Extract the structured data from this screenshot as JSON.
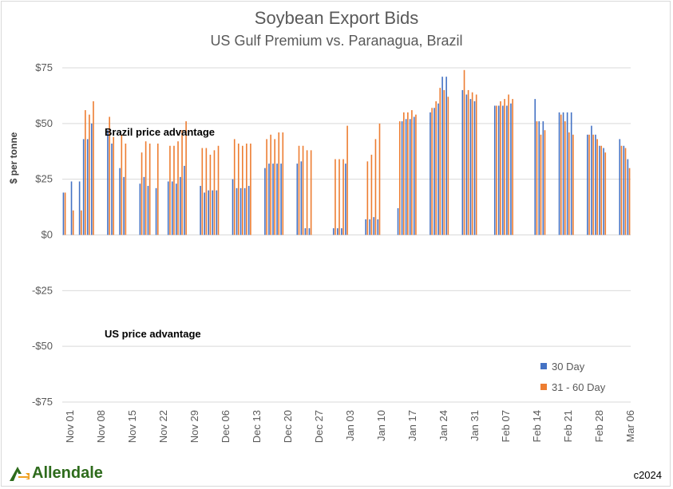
{
  "chart_data": {
    "type": "bar",
    "title": "Soybean Export Bids",
    "subtitle": "US Gulf Premium vs. Paranagua, Brazil",
    "ylabel": "$ per tonne",
    "ylim": [
      -75,
      75
    ],
    "yticks": [
      "$75",
      "$50",
      "$25",
      "$0",
      "-$25",
      "-$50",
      "-$75"
    ],
    "ytick_values": [
      75,
      50,
      25,
      0,
      -25,
      -50,
      -75
    ],
    "xtick_labels": [
      "Nov 01",
      "Nov 08",
      "Nov 15",
      "Nov 22",
      "Nov 29",
      "Dec 06",
      "Dec 13",
      "Dec 20",
      "Dec 27",
      "Jan 03",
      "Jan 10",
      "Jan 17",
      "Jan 24",
      "Jan 31",
      "Feb 07",
      "Feb 14",
      "Feb 21",
      "Feb 28",
      "Mar 06"
    ],
    "annotations": [
      "Brazil price advantage",
      "US price advantage"
    ],
    "legend_position": "bottom-right",
    "grid": "horizontal",
    "colors": {
      "series1": "#4472c4",
      "series2": "#ed7d31"
    },
    "series": [
      {
        "name": "30 Day",
        "values": [
          19,
          null,
          24,
          null,
          24,
          43,
          43,
          50,
          null,
          null,
          null,
          47,
          41,
          null,
          30,
          26,
          null,
          null,
          null,
          23,
          26,
          22,
          null,
          21,
          null,
          null,
          24,
          24,
          23,
          26,
          31,
          null,
          null,
          null,
          22,
          19,
          20,
          20,
          20,
          null,
          null,
          null,
          25,
          21,
          21,
          21,
          22,
          null,
          null,
          null,
          30,
          32,
          32,
          32,
          32,
          null,
          null,
          null,
          32,
          33,
          3,
          3,
          null,
          null,
          null,
          null,
          null,
          3,
          3,
          3,
          32,
          null,
          null,
          null,
          null,
          7,
          7,
          8,
          7,
          null,
          null,
          null,
          null,
          12,
          51,
          52,
          52,
          53,
          null,
          null,
          null,
          55,
          57,
          59,
          71,
          71,
          null,
          null,
          null,
          65,
          63,
          61,
          60,
          null,
          null,
          null,
          null,
          58,
          58,
          58,
          58,
          59,
          null,
          null,
          null,
          null,
          null,
          61,
          51,
          51,
          null,
          null,
          null,
          55,
          55,
          55,
          55,
          null,
          null,
          null,
          45,
          49,
          45,
          40,
          39,
          null,
          null,
          null,
          43,
          40,
          34
        ]
      },
      {
        "name": "31 - 60 Day",
        "values": [
          19,
          null,
          11,
          null,
          11,
          56,
          54,
          60,
          null,
          null,
          null,
          53,
          44,
          null,
          45,
          41,
          null,
          null,
          null,
          37,
          42,
          41,
          null,
          41,
          null,
          null,
          40,
          40,
          42,
          47,
          51,
          null,
          null,
          null,
          39,
          39,
          36,
          38,
          40,
          null,
          null,
          null,
          43,
          41,
          40,
          41,
          41,
          null,
          null,
          null,
          43,
          45,
          43,
          46,
          46,
          null,
          null,
          null,
          40,
          40,
          38,
          38,
          null,
          null,
          null,
          null,
          null,
          34,
          34,
          34,
          49,
          null,
          null,
          null,
          null,
          33,
          36,
          43,
          50,
          null,
          null,
          null,
          null,
          51,
          55,
          55,
          56,
          54,
          null,
          null,
          null,
          57,
          60,
          66,
          65,
          62,
          null,
          null,
          null,
          74,
          65,
          64,
          63,
          null,
          null,
          null,
          null,
          58,
          60,
          61,
          63,
          61,
          null,
          null,
          null,
          null,
          null,
          51,
          45,
          47,
          null,
          null,
          null,
          54,
          51,
          46,
          45,
          null,
          null,
          null,
          45,
          45,
          43,
          40,
          37,
          null,
          null,
          null,
          40,
          39,
          30
        ]
      }
    ]
  },
  "footer": {
    "logo_text": "Allendale",
    "copyright": "c2024"
  }
}
